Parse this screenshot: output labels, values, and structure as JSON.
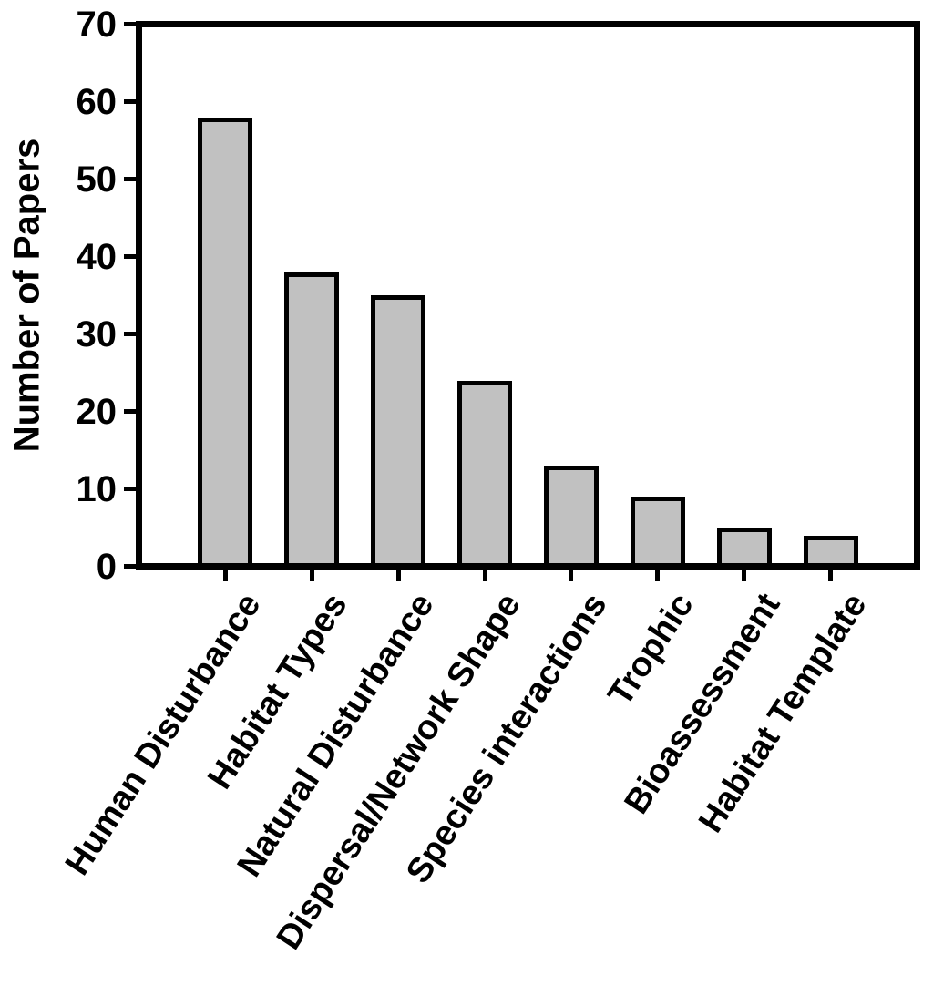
{
  "chart_data": {
    "type": "bar",
    "title": "",
    "ylabel": "Number of Papers",
    "xlabel": "",
    "categories": [
      "Human Disturbance",
      "Habitat Types",
      "Natural Disturbance",
      "Dispersal/Network Shape",
      "Species interactions",
      "Trophic",
      "Bioassessment",
      "Habitat Template"
    ],
    "values": [
      58,
      38,
      35,
      24,
      13,
      9,
      5,
      4
    ],
    "ylim": [
      0,
      70
    ],
    "yticks": [
      0,
      10,
      20,
      30,
      40,
      50,
      60,
      70
    ],
    "grid": false,
    "legend": "none",
    "colors": {
      "bar_fill": "#c1c1c1",
      "bar_border": "#000000",
      "axis": "#000000",
      "text": "#000000",
      "background": "#ffffff"
    }
  }
}
